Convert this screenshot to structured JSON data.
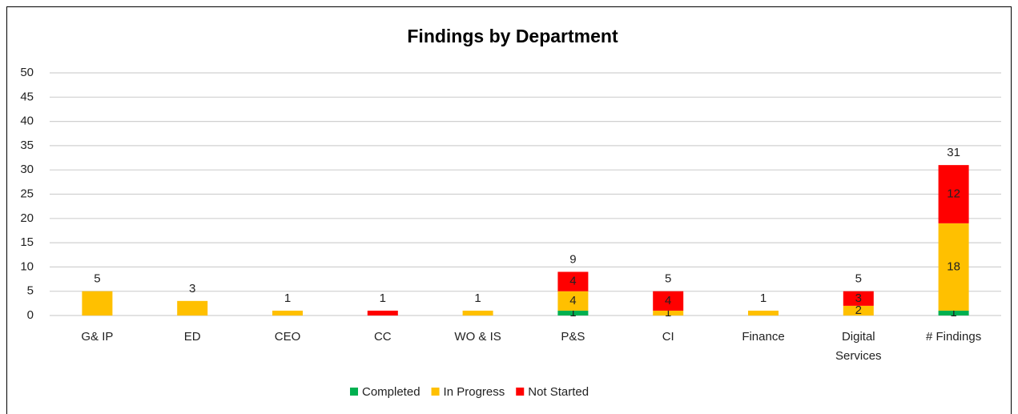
{
  "chart_data": {
    "type": "stacked_bar",
    "title": "Findings by Department",
    "categories": [
      "G& IP",
      "ED",
      "CEO",
      "CC",
      "WO & IS",
      "P&S",
      "CI",
      "Finance",
      "Digital Services",
      "# Findings"
    ],
    "series": [
      {
        "name": "Completed",
        "color": "#00b050",
        "values": [
          0,
          0,
          0,
          0,
          0,
          1,
          0,
          0,
          0,
          1
        ]
      },
      {
        "name": "In Progress",
        "color": "#ffc000",
        "values": [
          5,
          3,
          1,
          0,
          1,
          4,
          1,
          1,
          2,
          18
        ]
      },
      {
        "name": "Not Started",
        "color": "#ff0000",
        "values": [
          0,
          0,
          0,
          1,
          0,
          4,
          4,
          0,
          3,
          12
        ]
      }
    ],
    "totals": [
      5,
      3,
      1,
      1,
      1,
      9,
      5,
      1,
      5,
      31
    ],
    "ylim": [
      0,
      50
    ],
    "yticks": [
      0,
      5,
      10,
      15,
      20,
      25,
      30,
      35,
      40,
      45,
      50
    ],
    "grid": true,
    "legend": "bottom"
  }
}
